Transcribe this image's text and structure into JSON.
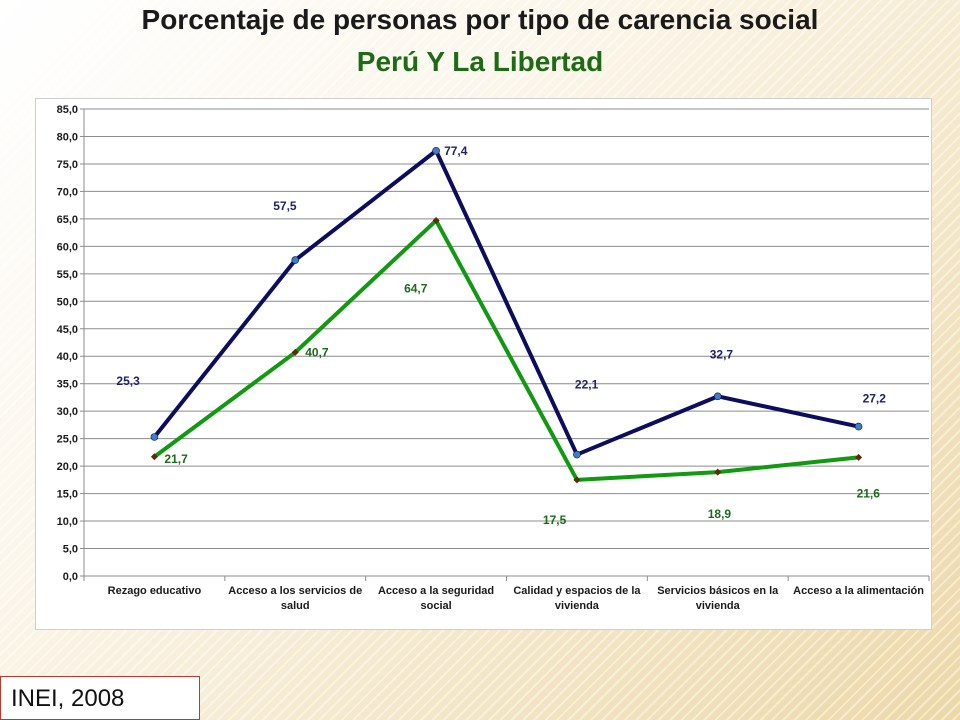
{
  "title": "Porcentaje de personas por tipo de carencia social",
  "subtitle": "Perú  Y La Libertad",
  "source": "INEI, 2008",
  "chart_data": {
    "type": "line",
    "categories": [
      "Rezago educativo",
      "Acceso a los servicios de salud",
      "Acceso a la seguridad social",
      "Calidad y espacios de la vivienda",
      "Servicios básicos en la vivienda",
      "Acceso a la alimentación"
    ],
    "category_lines": [
      [
        "Rezago educativo"
      ],
      [
        "Acceso a los servicios de",
        "salud"
      ],
      [
        "Acceso a la seguridad",
        "social"
      ],
      [
        "Calidad y espacios de la",
        "vivienda"
      ],
      [
        "Servicios básicos en la",
        "vivienda"
      ],
      [
        "Acceso a la alimentación"
      ]
    ],
    "series": [
      {
        "values": [
          25.3,
          57.5,
          77.4,
          22.1,
          32.7,
          27.2
        ],
        "labels": [
          "25,3",
          "57,5",
          "77,4",
          "22,1",
          "32,7",
          "27,2"
        ],
        "color": "#0d0d5e",
        "marker": "circle",
        "marker_color": "#3f7fc1"
      },
      {
        "values": [
          21.7,
          40.7,
          64.7,
          17.5,
          18.9,
          21.6
        ],
        "labels": [
          "21,7",
          "40,7",
          "64,7",
          "17,5",
          "18,9",
          "21,6"
        ],
        "color": "#119911",
        "marker": "diamond",
        "marker_color": "#5a2a0a"
      }
    ],
    "ylim": [
      0,
      85
    ],
    "yticks": [
      "0,0",
      "5,0",
      "10,0",
      "15,0",
      "20,0",
      "25,0",
      "30,0",
      "35,0",
      "40,0",
      "45,0",
      "50,0",
      "55,0",
      "60,0",
      "65,0",
      "70,0",
      "75,0",
      "80,0",
      "85,0"
    ],
    "grid": true,
    "legend": "none"
  }
}
